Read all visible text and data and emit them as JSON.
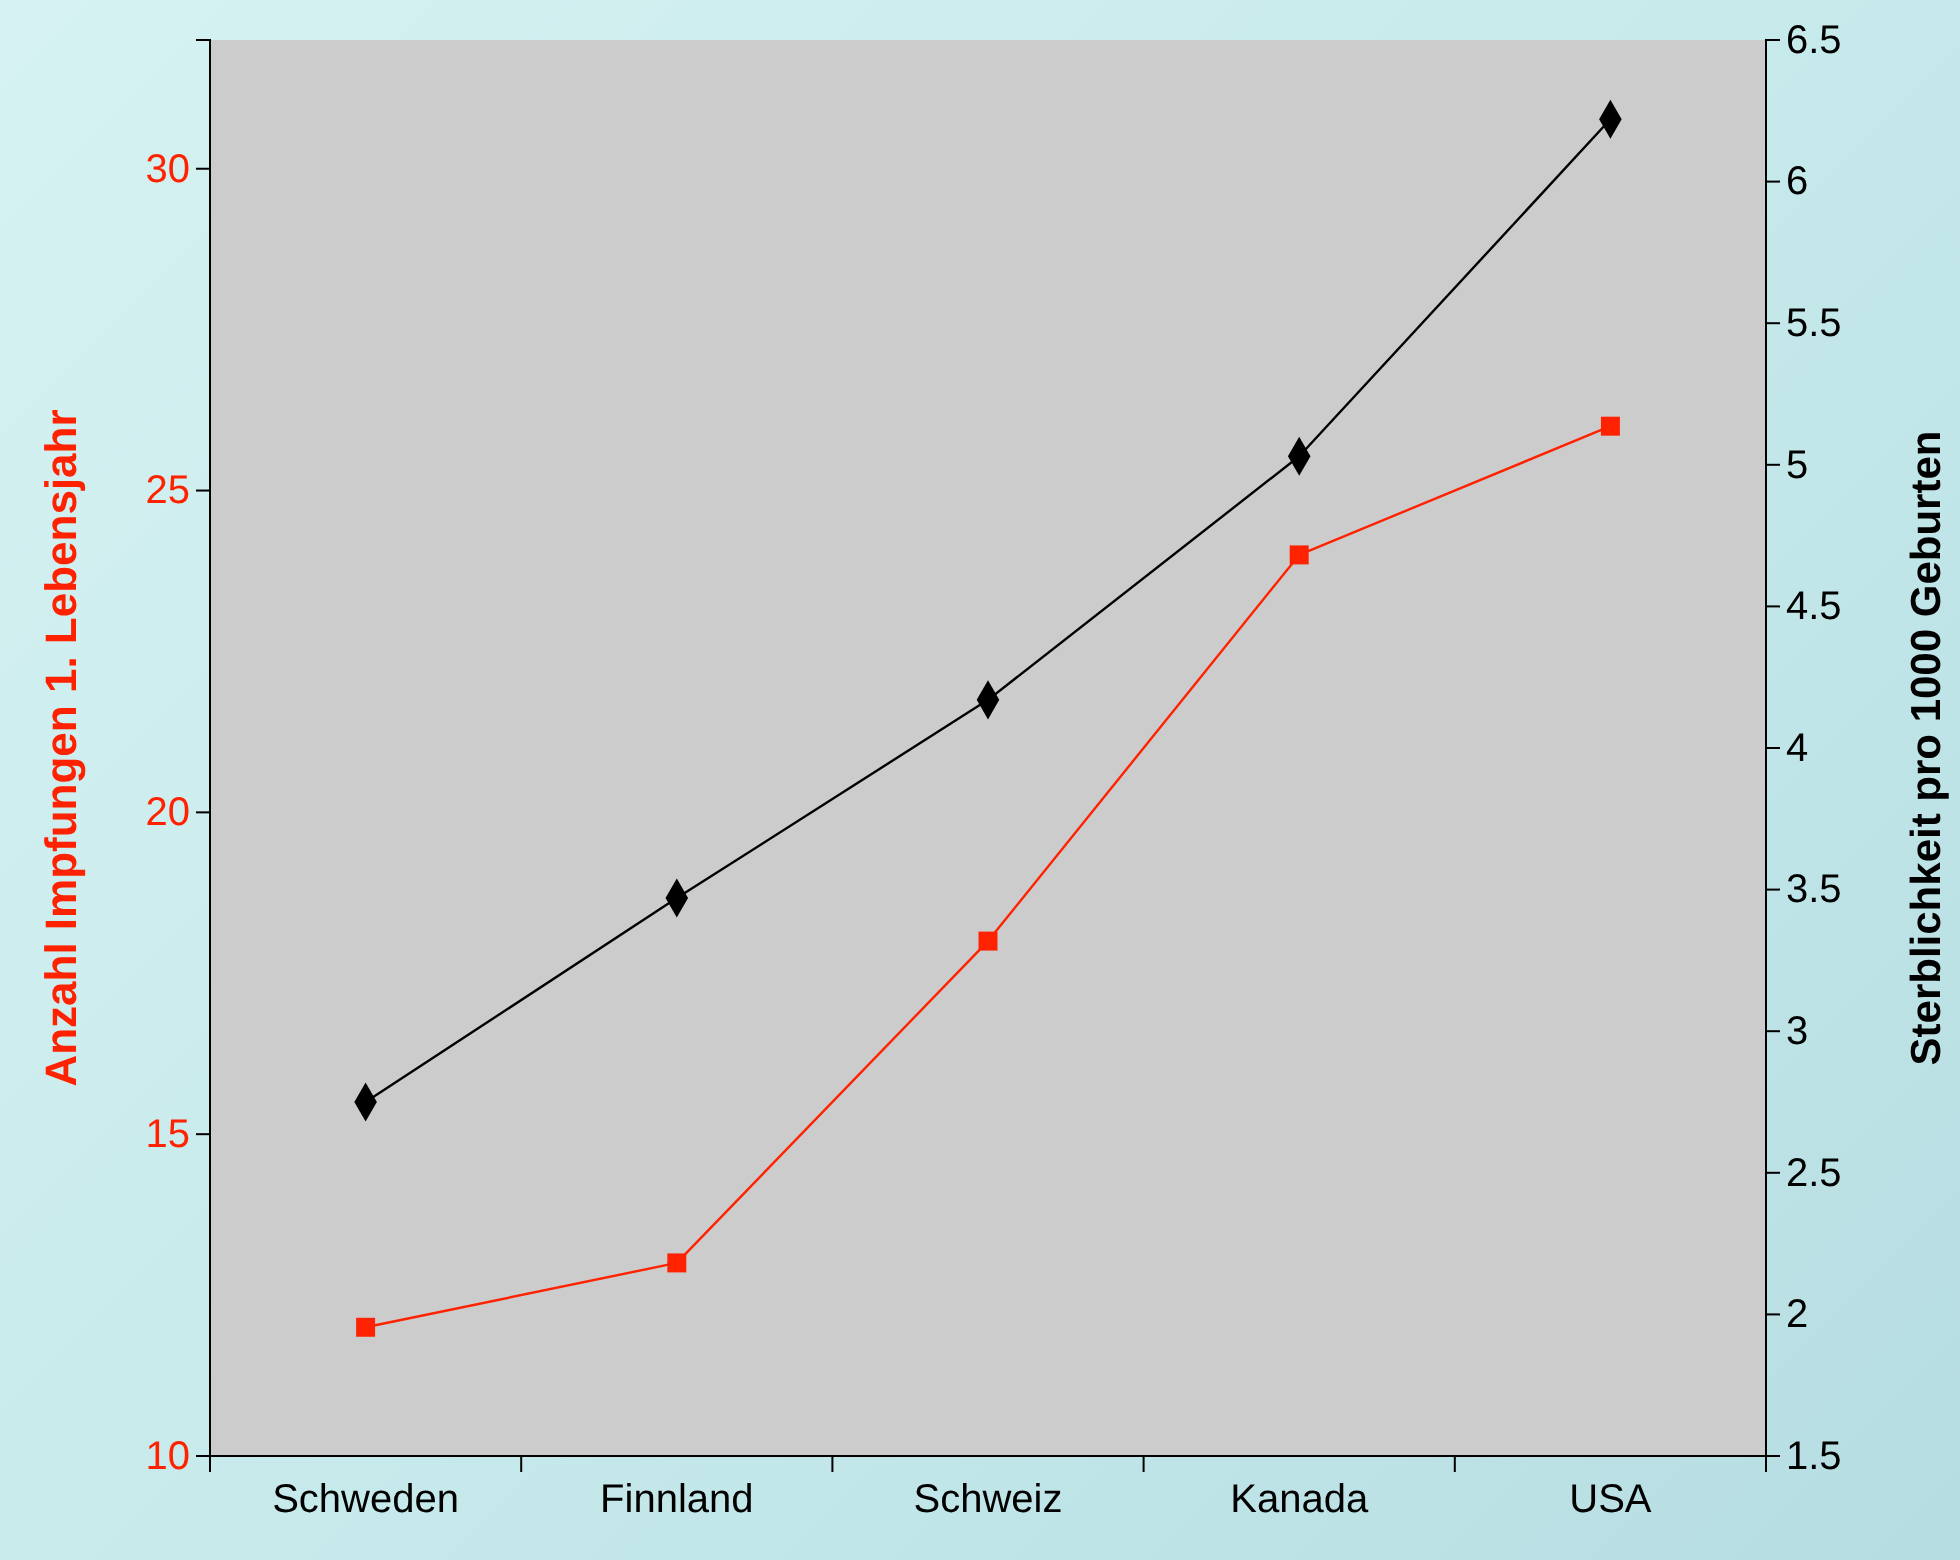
{
  "chart_data": {
    "type": "line",
    "ylabel": "Anzahl Impfungen 1. Lebensjahr",
    "y2label": "Sterblichkeit pro 1000 Geburten",
    "categories": [
      "Schweden",
      "Finnland",
      "Schweiz",
      "Kanada",
      "USA"
    ],
    "series": [
      {
        "color": "#ff2200",
        "values": [
          12,
          13,
          18,
          24,
          26
        ],
        "marker": "square"
      },
      {
        "color": "#000000",
        "values": [
          2.75,
          3.47,
          4.17,
          5.03,
          6.22
        ],
        "axis": "y2",
        "marker": "diamond"
      }
    ],
    "ylim": [
      10,
      32
    ],
    "yticks": [
      10,
      15,
      20,
      25,
      30
    ],
    "y2lim": [
      1.5,
      6.5
    ],
    "y2ticks": [
      1.5,
      2,
      2.5,
      3,
      3.5,
      4,
      4.5,
      5,
      5.5,
      6,
      6.5
    ],
    "grid": false
  }
}
